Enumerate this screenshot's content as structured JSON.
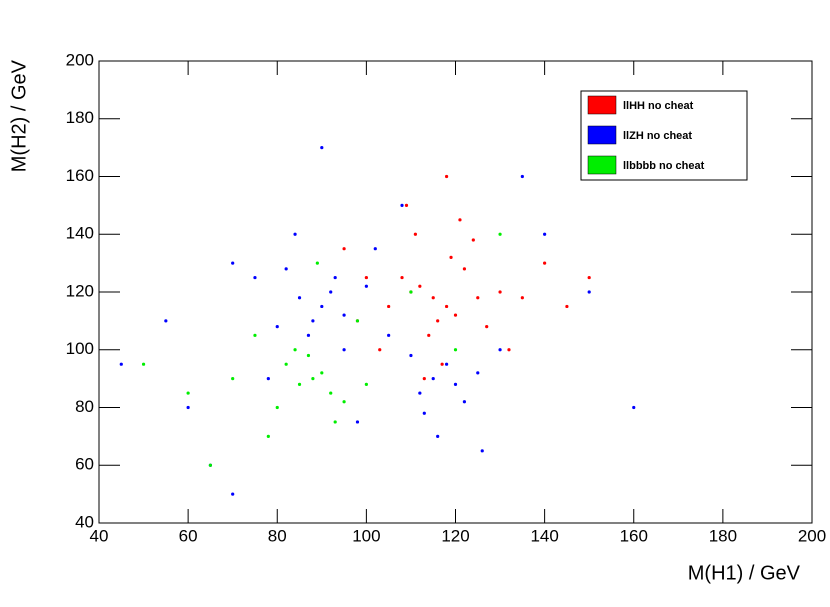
{
  "chart_data": {
    "type": "scatter",
    "xlabel": "M(H1) / GeV",
    "ylabel": "M(H2) / GeV",
    "xlim": [
      40,
      200
    ],
    "xticks": [
      40,
      60,
      80,
      100,
      120,
      140,
      160,
      180,
      200
    ],
    "ylim": [
      40,
      200
    ],
    "yticks": [
      40,
      60,
      80,
      100,
      120,
      140,
      160,
      180,
      200
    ],
    "legend": "upper right",
    "series": [
      {
        "name": "llZH no cheat",
        "color": "#0000ff",
        "x": [
          90,
          85,
          95,
          88,
          92,
          80,
          100,
          75,
          105,
          115,
          120,
          118,
          112,
          125,
          110,
          93,
          87,
          70,
          130,
          60,
          140,
          98,
          82,
          108,
          122,
          116,
          65,
          55,
          150,
          135,
          78,
          102,
          95,
          84,
          126,
          113,
          45,
          160,
          90,
          70
        ],
        "y": [
          115,
          118,
          112,
          110,
          120,
          108,
          122,
          125,
          105,
          90,
          88,
          95,
          85,
          92,
          98,
          125,
          105,
          130,
          100,
          80,
          140,
          75,
          128,
          150,
          82,
          70,
          60,
          110,
          120,
          160,
          90,
          135,
          100,
          140,
          65,
          78,
          95,
          80,
          170,
          50
        ]
      },
      {
        "name": "llHH no cheat",
        "color": "#ff0000",
        "x": [
          115,
          118,
          112,
          120,
          110,
          125,
          108,
          116,
          122,
          105,
          130,
          114,
          119,
          100,
          135,
          111,
          127,
          103,
          117,
          140,
          95,
          121,
          113,
          145,
          109,
          124,
          132,
          98,
          150,
          118
        ],
        "y": [
          118,
          115,
          122,
          112,
          120,
          118,
          125,
          110,
          128,
          115,
          120,
          105,
          132,
          125,
          118,
          140,
          108,
          100,
          95,
          130,
          135,
          145,
          90,
          115,
          150,
          138,
          100,
          110,
          125,
          160
        ]
      },
      {
        "name": "llbbbb no cheat",
        "color": "#00ee00",
        "x": [
          88,
          85,
          92,
          90,
          82,
          95,
          87,
          80,
          75,
          100,
          93,
          84,
          70,
          98,
          60,
          110,
          78,
          89,
          65,
          120,
          50,
          130
        ],
        "y": [
          90,
          88,
          85,
          92,
          95,
          82,
          98,
          80,
          105,
          88,
          75,
          100,
          90,
          110,
          85,
          120,
          70,
          130,
          60,
          100,
          95,
          140
        ]
      }
    ]
  }
}
